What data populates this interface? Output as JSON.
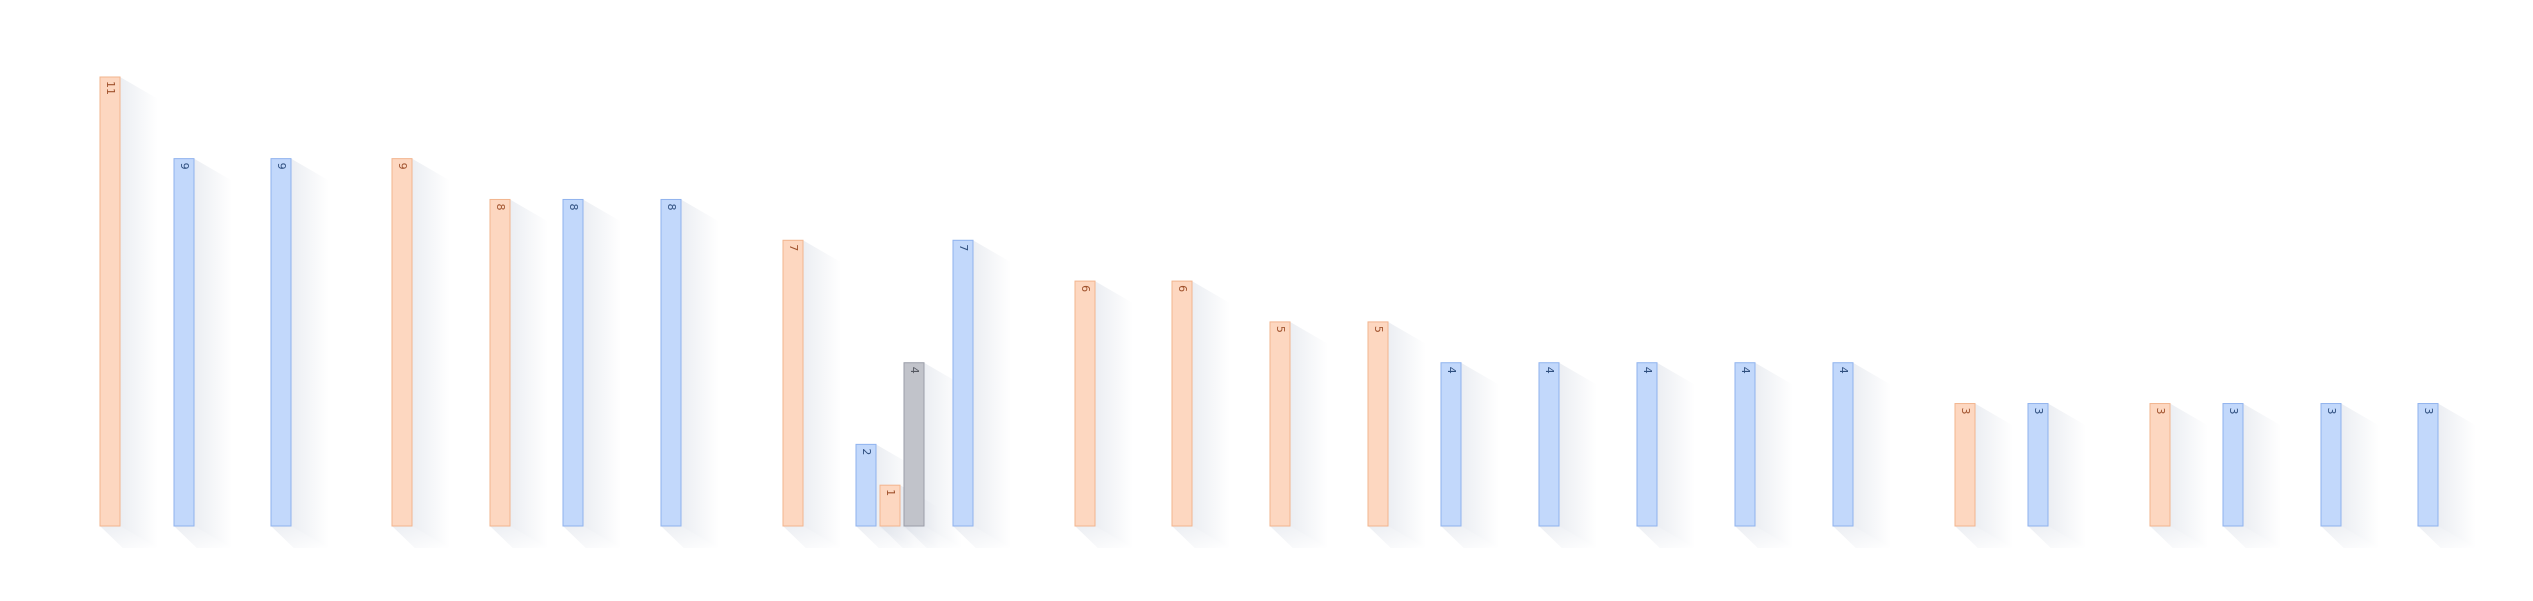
{
  "chart_data": {
    "type": "bar",
    "title": "",
    "xlabel": "",
    "ylabel": "",
    "ylim": [
      0,
      11
    ],
    "grid": false,
    "legend": "none",
    "value_labels": "rotated-inside-top",
    "colors": {
      "peach": "#FDD7C0",
      "peach_stroke": "#F2B48E",
      "peach_text": "#A0522D",
      "blue": "#C2D8FB",
      "blue_stroke": "#8FB2EE",
      "blue_text": "#2F4F7F",
      "gray": "#C1C3CA",
      "gray_stroke": "#9A9DA8",
      "gray_text": "#555861",
      "shadow": "#C7CEDB"
    },
    "bars": [
      {
        "value": 11,
        "label": "11",
        "color": "peach"
      },
      {
        "value": 9,
        "label": "9",
        "color": "blue"
      },
      {
        "value": 9,
        "label": "9",
        "color": "blue"
      },
      {
        "value": 9,
        "label": "9",
        "color": "peach"
      },
      {
        "value": 8,
        "label": "8",
        "color": "peach"
      },
      {
        "value": 8,
        "label": "8",
        "color": "blue"
      },
      {
        "value": 8,
        "label": "8",
        "color": "blue"
      },
      {
        "value": 7,
        "label": "7",
        "color": "peach"
      },
      {
        "value": 2,
        "label": "2",
        "color": "blue"
      },
      {
        "value": 1,
        "label": "1",
        "color": "peach"
      },
      {
        "value": 4,
        "label": "4",
        "color": "gray"
      },
      {
        "value": 7,
        "label": "7",
        "color": "blue"
      },
      {
        "value": 6,
        "label": "6",
        "color": "peach"
      },
      {
        "value": 6,
        "label": "6",
        "color": "peach"
      },
      {
        "value": 5,
        "label": "5",
        "color": "peach"
      },
      {
        "value": 5,
        "label": "5",
        "color": "peach"
      },
      {
        "value": 4,
        "label": "4",
        "color": "blue"
      },
      {
        "value": 4,
        "label": "4",
        "color": "blue"
      },
      {
        "value": 4,
        "label": "4",
        "color": "blue"
      },
      {
        "value": 4,
        "label": "4",
        "color": "blue"
      },
      {
        "value": 4,
        "label": "4",
        "color": "blue"
      },
      {
        "value": 3,
        "label": "3",
        "color": "peach"
      },
      {
        "value": 3,
        "label": "3",
        "color": "blue"
      },
      {
        "value": 3,
        "label": "3",
        "color": "peach"
      },
      {
        "value": 3,
        "label": "3",
        "color": "blue"
      },
      {
        "value": 3,
        "label": "3",
        "color": "blue"
      },
      {
        "value": 3,
        "label": "3",
        "color": "blue"
      }
    ]
  }
}
